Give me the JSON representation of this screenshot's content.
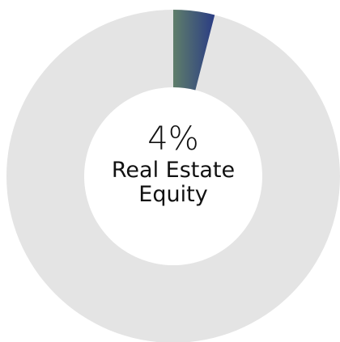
{
  "chart_data": {
    "type": "pie",
    "donut": true,
    "categories": [
      "Real Estate Equity"
    ],
    "values": [
      4
    ],
    "value_labels": [
      "4%"
    ],
    "total": 100,
    "gradient": [
      "#5f7e6a",
      "#2a3c84"
    ],
    "track_color": "#e4e4e4"
  }
}
